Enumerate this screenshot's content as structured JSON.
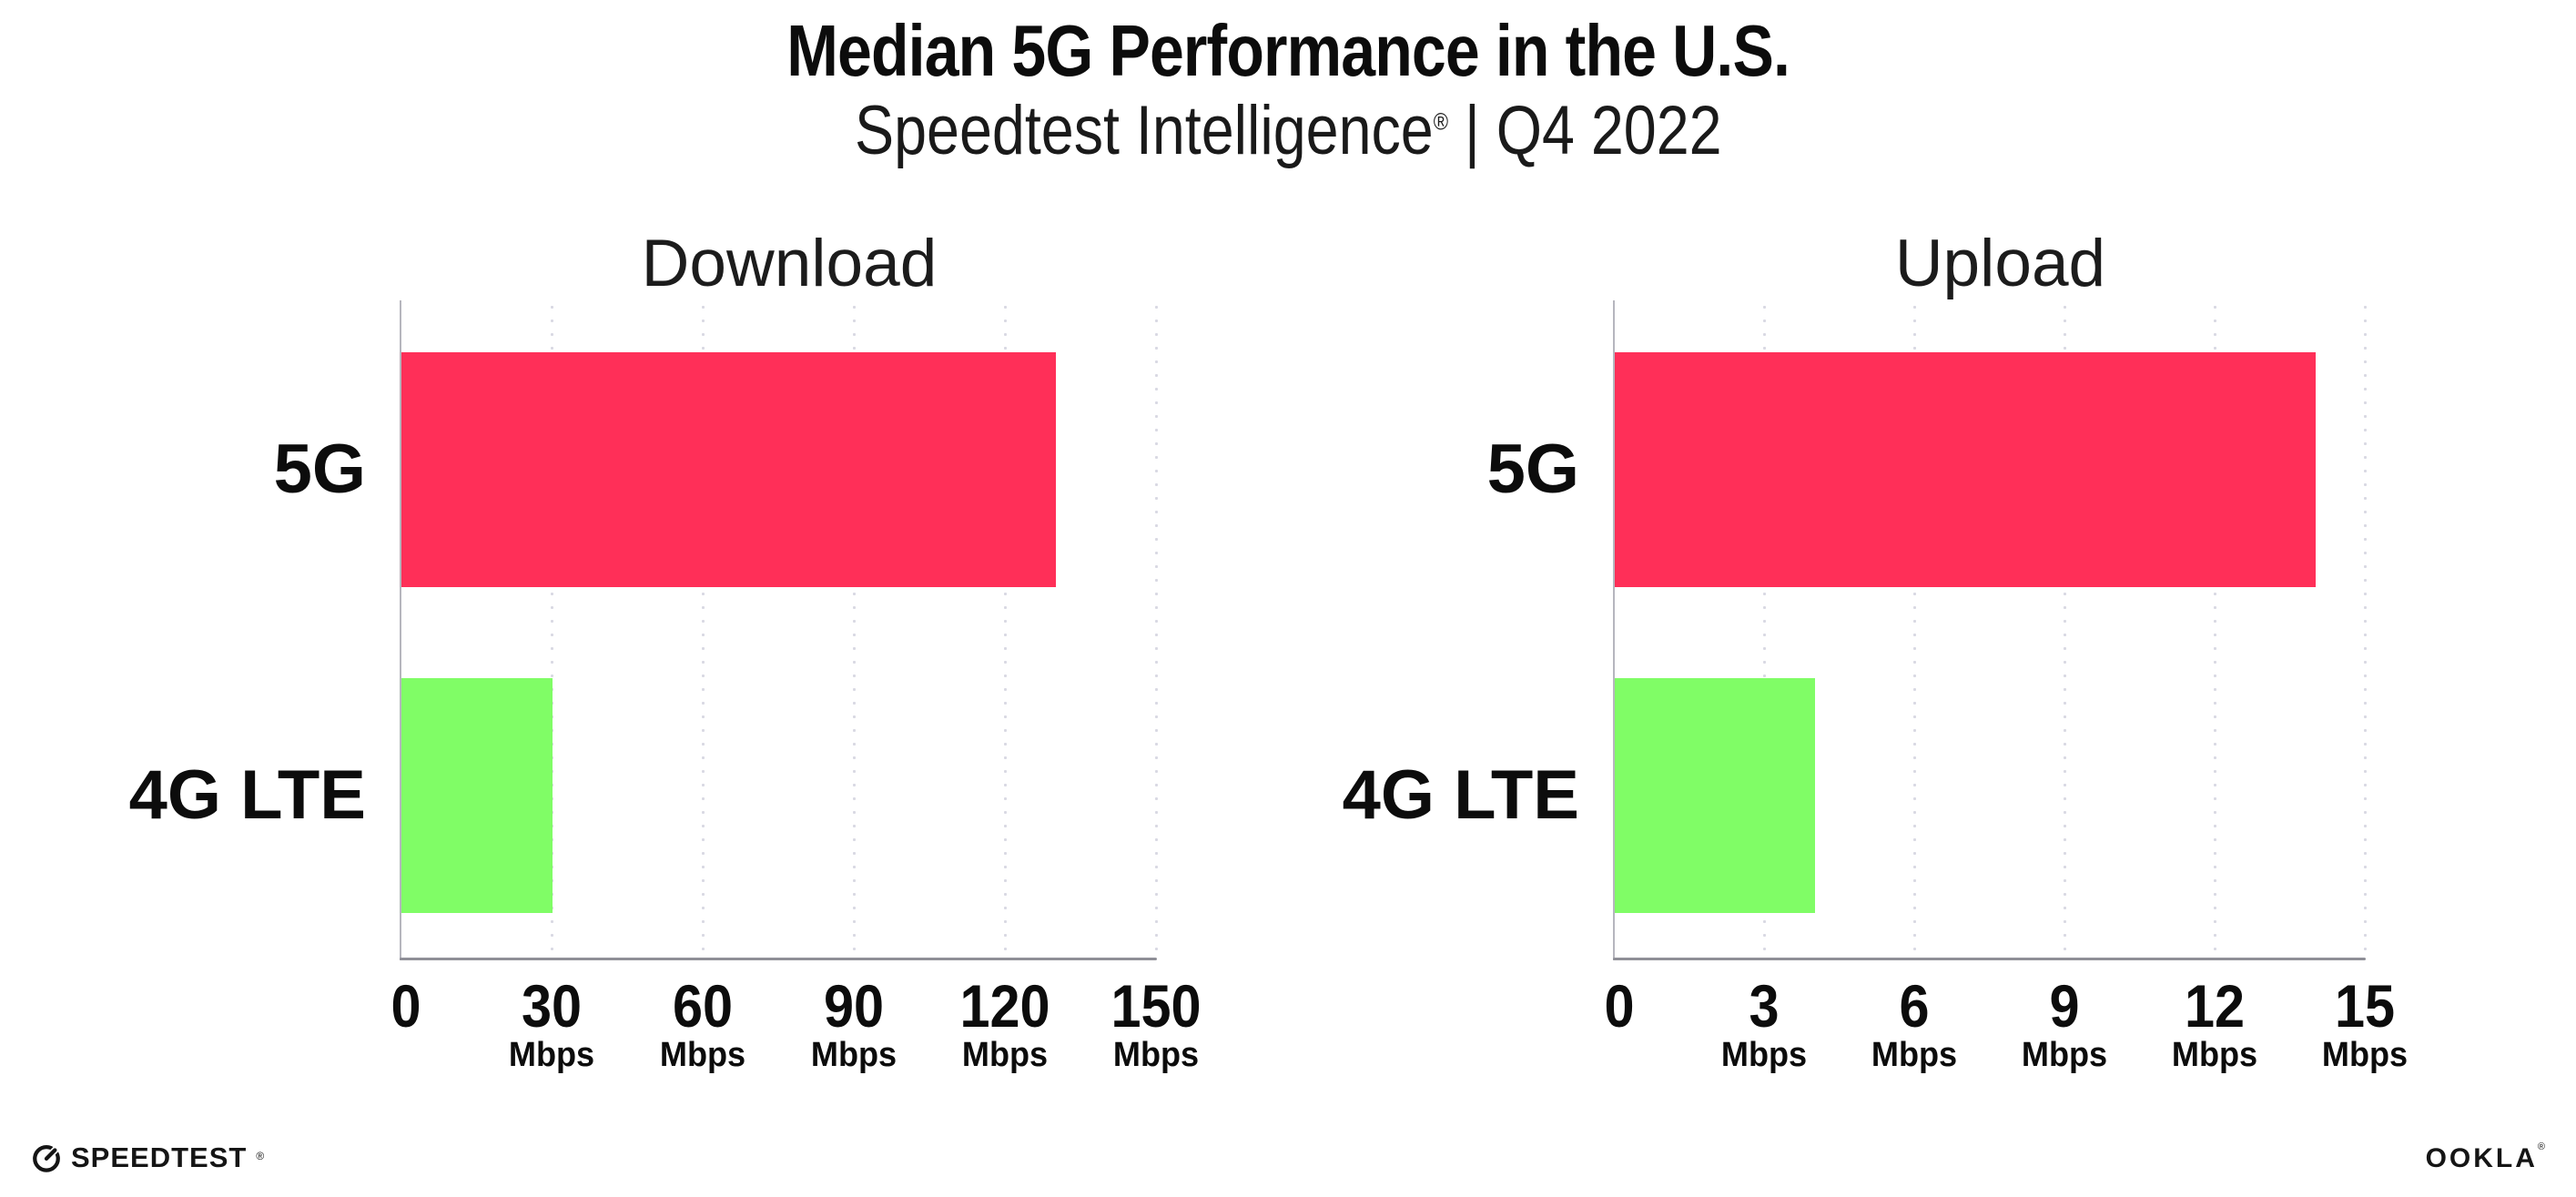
{
  "header": {
    "title": "Median 5G Performance in the U.S.",
    "subtitle_brand": "Speedtest Intelligence",
    "subtitle_reg": "®",
    "subtitle_rest": " | Q4 2022"
  },
  "chart_data": [
    {
      "type": "bar",
      "orientation": "horizontal",
      "title": "Download",
      "categories": [
        "5G",
        "4G LTE"
      ],
      "values": [
        130,
        30
      ],
      "unit": "Mbps",
      "xlim": [
        0,
        150
      ],
      "xticks": [
        0,
        30,
        60,
        90,
        120,
        150
      ],
      "bar_colors": [
        "#FF2F58",
        "#80FD66"
      ],
      "grid": "vertical-dotted",
      "axis_color": "#8f8f97",
      "gridline_color": "#d9d9e3"
    },
    {
      "type": "bar",
      "orientation": "horizontal",
      "title": "Upload",
      "categories": [
        "5G",
        "4G LTE"
      ],
      "values": [
        14,
        4
      ],
      "unit": "Mbps",
      "xlim": [
        0,
        15
      ],
      "xticks": [
        0,
        3,
        6,
        9,
        12,
        15
      ],
      "bar_colors": [
        "#FF2F58",
        "#80FD66"
      ],
      "grid": "vertical-dotted",
      "axis_color": "#8f8f97",
      "gridline_color": "#d9d9e3"
    }
  ],
  "footer": {
    "speedtest_label": "SPEEDTEST",
    "speedtest_reg": "®",
    "ookla_label": "OOKLA",
    "ookla_reg": "®"
  }
}
